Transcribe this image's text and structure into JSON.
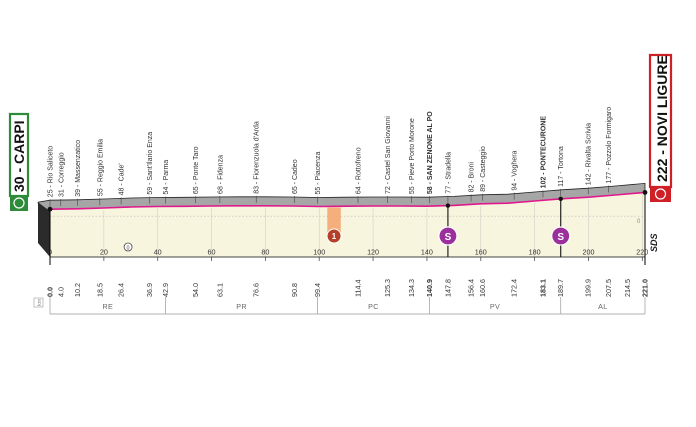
{
  "chart_data": {
    "type": "area",
    "title": "",
    "xlabel": "",
    "ylabel": "",
    "start": {
      "km": "30",
      "name": "CARPI",
      "label": "30 - CARPI"
    },
    "finish": {
      "km": "222",
      "name": "NOVI LIGURE",
      "label": "222 - NOVI LIGURE"
    },
    "xlim": [
      0,
      221
    ],
    "x_ticks": [
      0,
      20,
      40,
      60,
      80,
      100,
      120,
      140,
      160,
      180,
      200,
      220
    ],
    "x_tick_labels": [
      "0",
      "20",
      "40",
      "60",
      "80",
      "100",
      "120",
      "140",
      "160",
      "180",
      "200",
      "220"
    ],
    "profile": {
      "x": [
        0,
        10,
        20,
        30,
        40,
        50,
        60,
        70,
        80,
        90,
        100,
        110,
        120,
        130,
        140,
        150,
        160,
        170,
        180,
        190,
        200,
        210,
        221
      ],
      "y": [
        28,
        32,
        40,
        50,
        55,
        57,
        60,
        62,
        62,
        60,
        55,
        58,
        60,
        60,
        58,
        66,
        82,
        88,
        110,
        132,
        148,
        170,
        196
      ]
    },
    "towns": [
      {
        "km": 0.0,
        "km_label": "0.0",
        "label": "25 - Rio Saliceto",
        "bold": false
      },
      {
        "km": 4.0,
        "km_label": "4.0",
        "label": "31 - Correggio",
        "bold": false
      },
      {
        "km": 10.2,
        "km_label": "10.2",
        "label": "39 - Massenzatico",
        "bold": false
      },
      {
        "km": 18.5,
        "km_label": "18.5",
        "label": "55 - Reggio Emilia",
        "bold": false
      },
      {
        "km": 26.4,
        "km_label": "26.4",
        "label": "48 - Cade'",
        "bold": false
      },
      {
        "km": 36.9,
        "km_label": "36.9",
        "label": "59 - Sant'Ilario Enza",
        "bold": false
      },
      {
        "km": 42.9,
        "km_label": "42.9",
        "label": "54 - Parma",
        "bold": false
      },
      {
        "km": 54.0,
        "km_label": "54.0",
        "label": "65 - Ponte Taro",
        "bold": false
      },
      {
        "km": 63.1,
        "km_label": "63.1",
        "label": "68 - Fidenza",
        "bold": false
      },
      {
        "km": 76.6,
        "km_label": "76.6",
        "label": "83 - Fiorenzuola d'Arda",
        "bold": false
      },
      {
        "km": 90.8,
        "km_label": "90.8",
        "label": "65 - Cadeo",
        "bold": false
      },
      {
        "km": 99.4,
        "km_label": "99.4",
        "label": "55 - Piacenza",
        "bold": false
      },
      {
        "km": 114.4,
        "km_label": "114.4",
        "label": "64 - Rottofreno",
        "bold": false
      },
      {
        "km": 125.3,
        "km_label": "125.3",
        "label": "72 - Castel San Giovanni",
        "bold": false
      },
      {
        "km": 134.3,
        "km_label": "134.3",
        "label": "55 - Pieve Porto Morone",
        "bold": false
      },
      {
        "km": 140.9,
        "km_label": "140.9",
        "label": "58 - SAN ZENONE AL PO",
        "bold": true
      },
      {
        "km": 147.8,
        "km_label": "147.8",
        "label": "77 - Stradella",
        "bold": false
      },
      {
        "km": 156.4,
        "km_label": "156.4",
        "label": "82 - Broni",
        "bold": false
      },
      {
        "km": 160.6,
        "km_label": "160.6",
        "label": "89 - Casteggio",
        "bold": false
      },
      {
        "km": 172.4,
        "km_label": "172.4",
        "label": "94 - Voghera",
        "bold": false
      },
      {
        "km": 183.1,
        "km_label": "183.1",
        "label": "102 - PONTECURONE",
        "bold": true
      },
      {
        "km": 189.7,
        "km_label": "189.7",
        "label": "117 - Tortona",
        "bold": false
      },
      {
        "km": 199.9,
        "km_label": "199.9",
        "label": "142 - Rivalta Scrivia",
        "bold": false
      },
      {
        "km": 207.5,
        "km_label": "207.5",
        "label": "177 - Pozzolo Formigaro",
        "bold": false
      },
      {
        "km": 214.5,
        "km_label": "214.5",
        "label": "",
        "bold": false
      },
      {
        "km": 221.0,
        "km_label": "221.0",
        "label": "",
        "bold": false
      }
    ],
    "sprints": [
      {
        "km": 147.8,
        "label": "S"
      },
      {
        "km": 189.7,
        "label": "S"
      }
    ],
    "feed_zone": {
      "km_from": 103,
      "km_to": 108,
      "label": "1"
    },
    "km_marker_label": "0",
    "units_label": "km",
    "regions": [
      {
        "code": "RE",
        "from": 0,
        "to": 42.9
      },
      {
        "code": "PR",
        "from": 42.9,
        "to": 99.4
      },
      {
        "code": "PC",
        "from": 99.4,
        "to": 140.9
      },
      {
        "code": "PV",
        "from": 140.9,
        "to": 189.7
      },
      {
        "code": "AL",
        "from": 189.7,
        "to": 221
      }
    ],
    "brand": "SDS",
    "colors": {
      "profile_line": "#e0198e",
      "profile_fill": "#f7f5de",
      "mountain": "#a6a6a6",
      "start_accent": "#2e8b3a",
      "finish_accent": "#cf2027",
      "sprint": "#9b2f9b",
      "feed": "#f4a26b"
    },
    "grid": true
  }
}
